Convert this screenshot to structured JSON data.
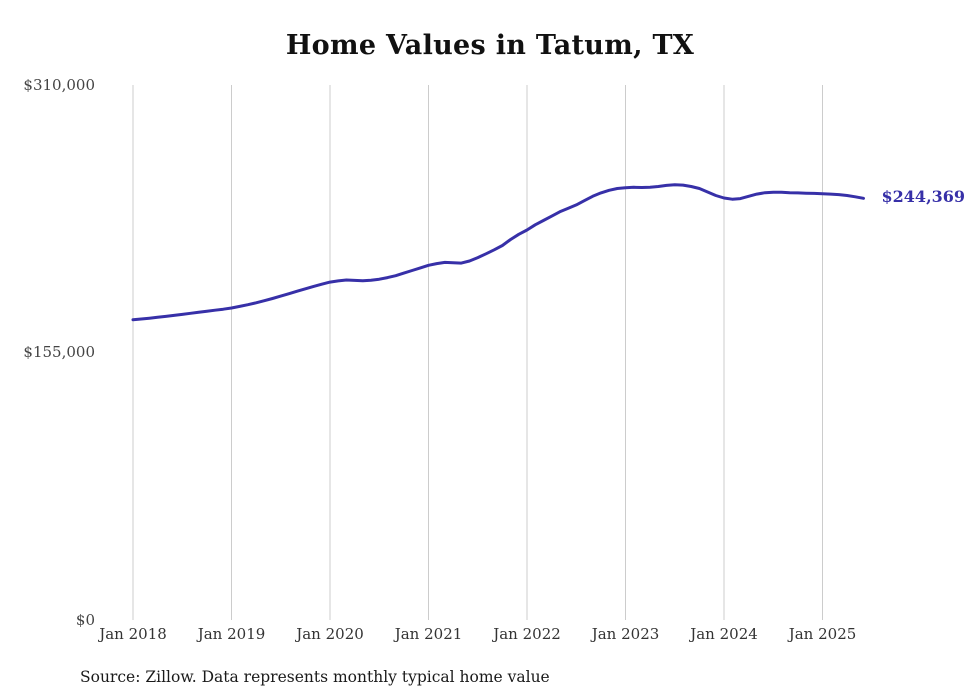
{
  "source": "Source: Zillow. Data represents monthly typical home value",
  "colors": {
    "line": "#3730a8",
    "gridline": "#cccccc",
    "axis_text": "#444444",
    "title_text": "#111111",
    "end_label": "#3730a8"
  },
  "chart_data": {
    "type": "line",
    "title": "Home Values in Tatum, TX",
    "xlabel": "",
    "ylabel": "",
    "x_start": "2018-01",
    "x_end": "2025-06",
    "x_interval": "month",
    "x_ticks": [
      "Jan 2018",
      "Jan 2019",
      "Jan 2020",
      "Jan 2021",
      "Jan 2022",
      "Jan 2023",
      "Jan 2024",
      "Jan 2025"
    ],
    "y_ticks": [
      "$310,000",
      "$155,000",
      "$0"
    ],
    "ylim": [
      0,
      310000
    ],
    "grid": "vertical",
    "legend": "none",
    "end_label": "$244,369",
    "end_value": 244369,
    "series_name": "Typical home value",
    "values": [
      174000,
      174400,
      174900,
      175400,
      175900,
      176500,
      177100,
      177700,
      178300,
      178900,
      179500,
      180100,
      180800,
      181700,
      182700,
      183800,
      185000,
      186300,
      187700,
      189100,
      190500,
      191900,
      193300,
      194600,
      195800,
      196500,
      197000,
      196800,
      196600,
      196900,
      197500,
      198400,
      199500,
      201000,
      202500,
      204000,
      205500,
      206500,
      207200,
      207000,
      206800,
      208000,
      210000,
      212200,
      214500,
      217000,
      220500,
      223500,
      226000,
      229000,
      231500,
      234000,
      236500,
      238500,
      240500,
      243000,
      245500,
      247500,
      249000,
      250000,
      250500,
      250700,
      250600,
      250800,
      251200,
      251800,
      252200,
      252000,
      251200,
      250000,
      248000,
      246000,
      244500,
      243800,
      244200,
      245500,
      246800,
      247600,
      247900,
      247800,
      247600,
      247500,
      247300,
      247200,
      247000,
      246800,
      246500,
      246000,
      245200,
      244369
    ]
  }
}
